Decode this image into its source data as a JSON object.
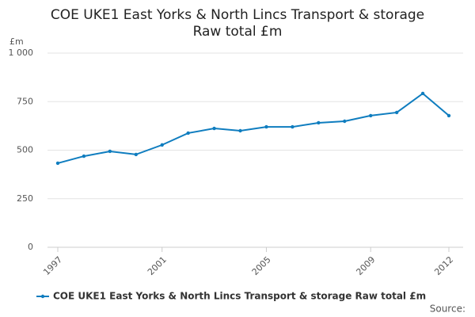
{
  "chart_data": {
    "type": "line",
    "title": [
      "COE UKE1 East Yorks & North Lincs Transport & storage",
      "Raw total £m"
    ],
    "y_axis_label": "£m",
    "x": [
      1997,
      1998,
      1999,
      2000,
      2001,
      2002,
      2003,
      2004,
      2005,
      2006,
      2007,
      2008,
      2009,
      2010,
      2011,
      2012
    ],
    "series": [
      {
        "name": "COE UKE1 East Yorks & North Lincs Transport & storage Raw total £m",
        "color": "#0f7dbf",
        "values": [
          433,
          469,
          494,
          478,
          527,
          588,
          612,
          600,
          620,
          620,
          641,
          649,
          678,
          694,
          792,
          678
        ]
      }
    ],
    "xlim": [
      1997,
      2012
    ],
    "xticks": [
      1997,
      2001,
      2005,
      2009,
      2012
    ],
    "ylim": [
      0,
      1000
    ],
    "yticks": [
      0,
      250,
      500,
      750,
      {
        "value": 1000,
        "label": "1 000"
      }
    ],
    "grid": true,
    "source": "Source:"
  }
}
